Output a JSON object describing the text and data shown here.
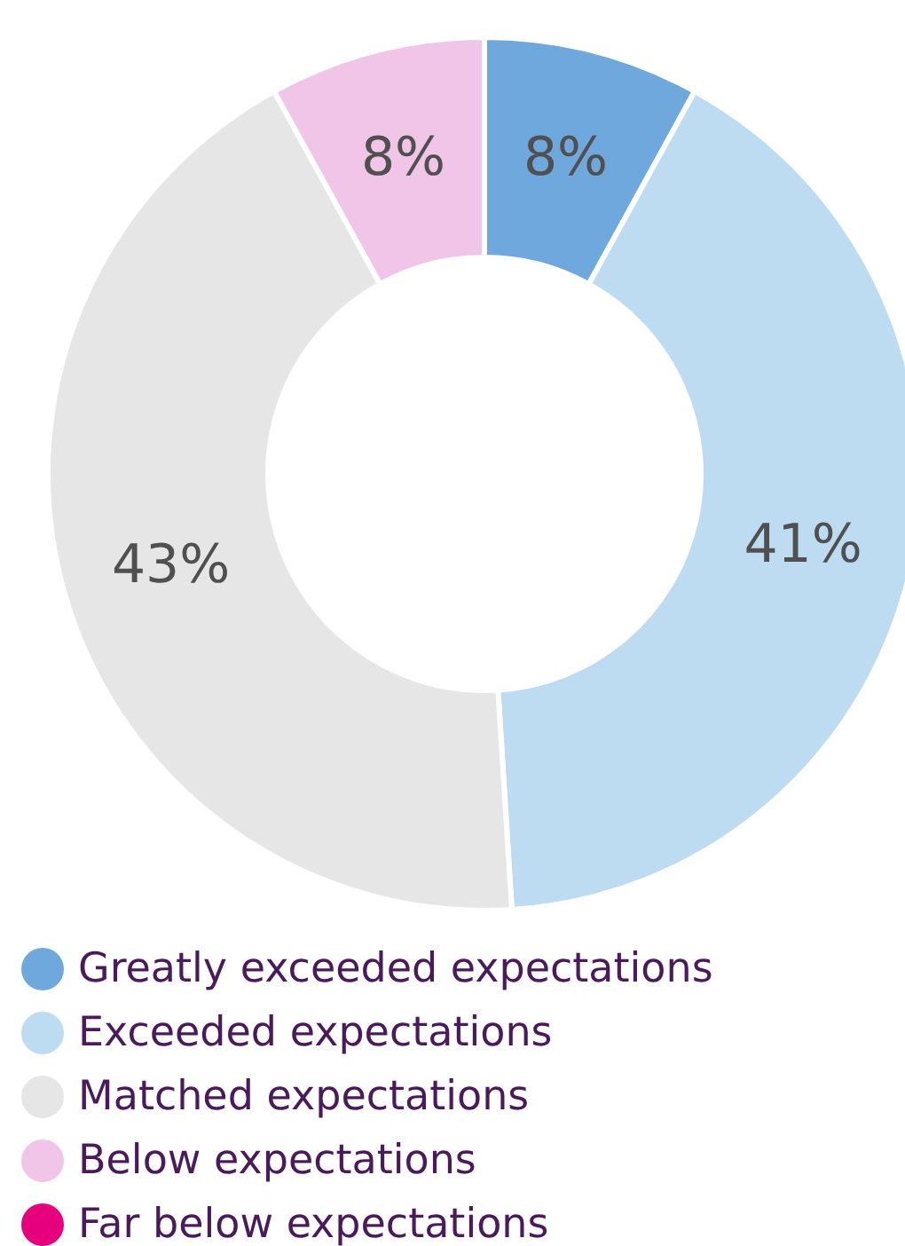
{
  "chart_data": {
    "type": "donut",
    "categories": [
      "Greatly exceeded expectations",
      "Exceeded expectations",
      "Matched expectations",
      "Below expectations",
      "Far below expectations"
    ],
    "values": [
      8,
      41,
      43,
      8,
      0
    ],
    "colors": [
      "#6fa8dc",
      "#bddcf2",
      "#e6e6e6",
      "#f0c5e7",
      "#e6007e"
    ],
    "value_labels": [
      "8%",
      "41%",
      "43%",
      "8%",
      null
    ],
    "legend": "bottom"
  }
}
